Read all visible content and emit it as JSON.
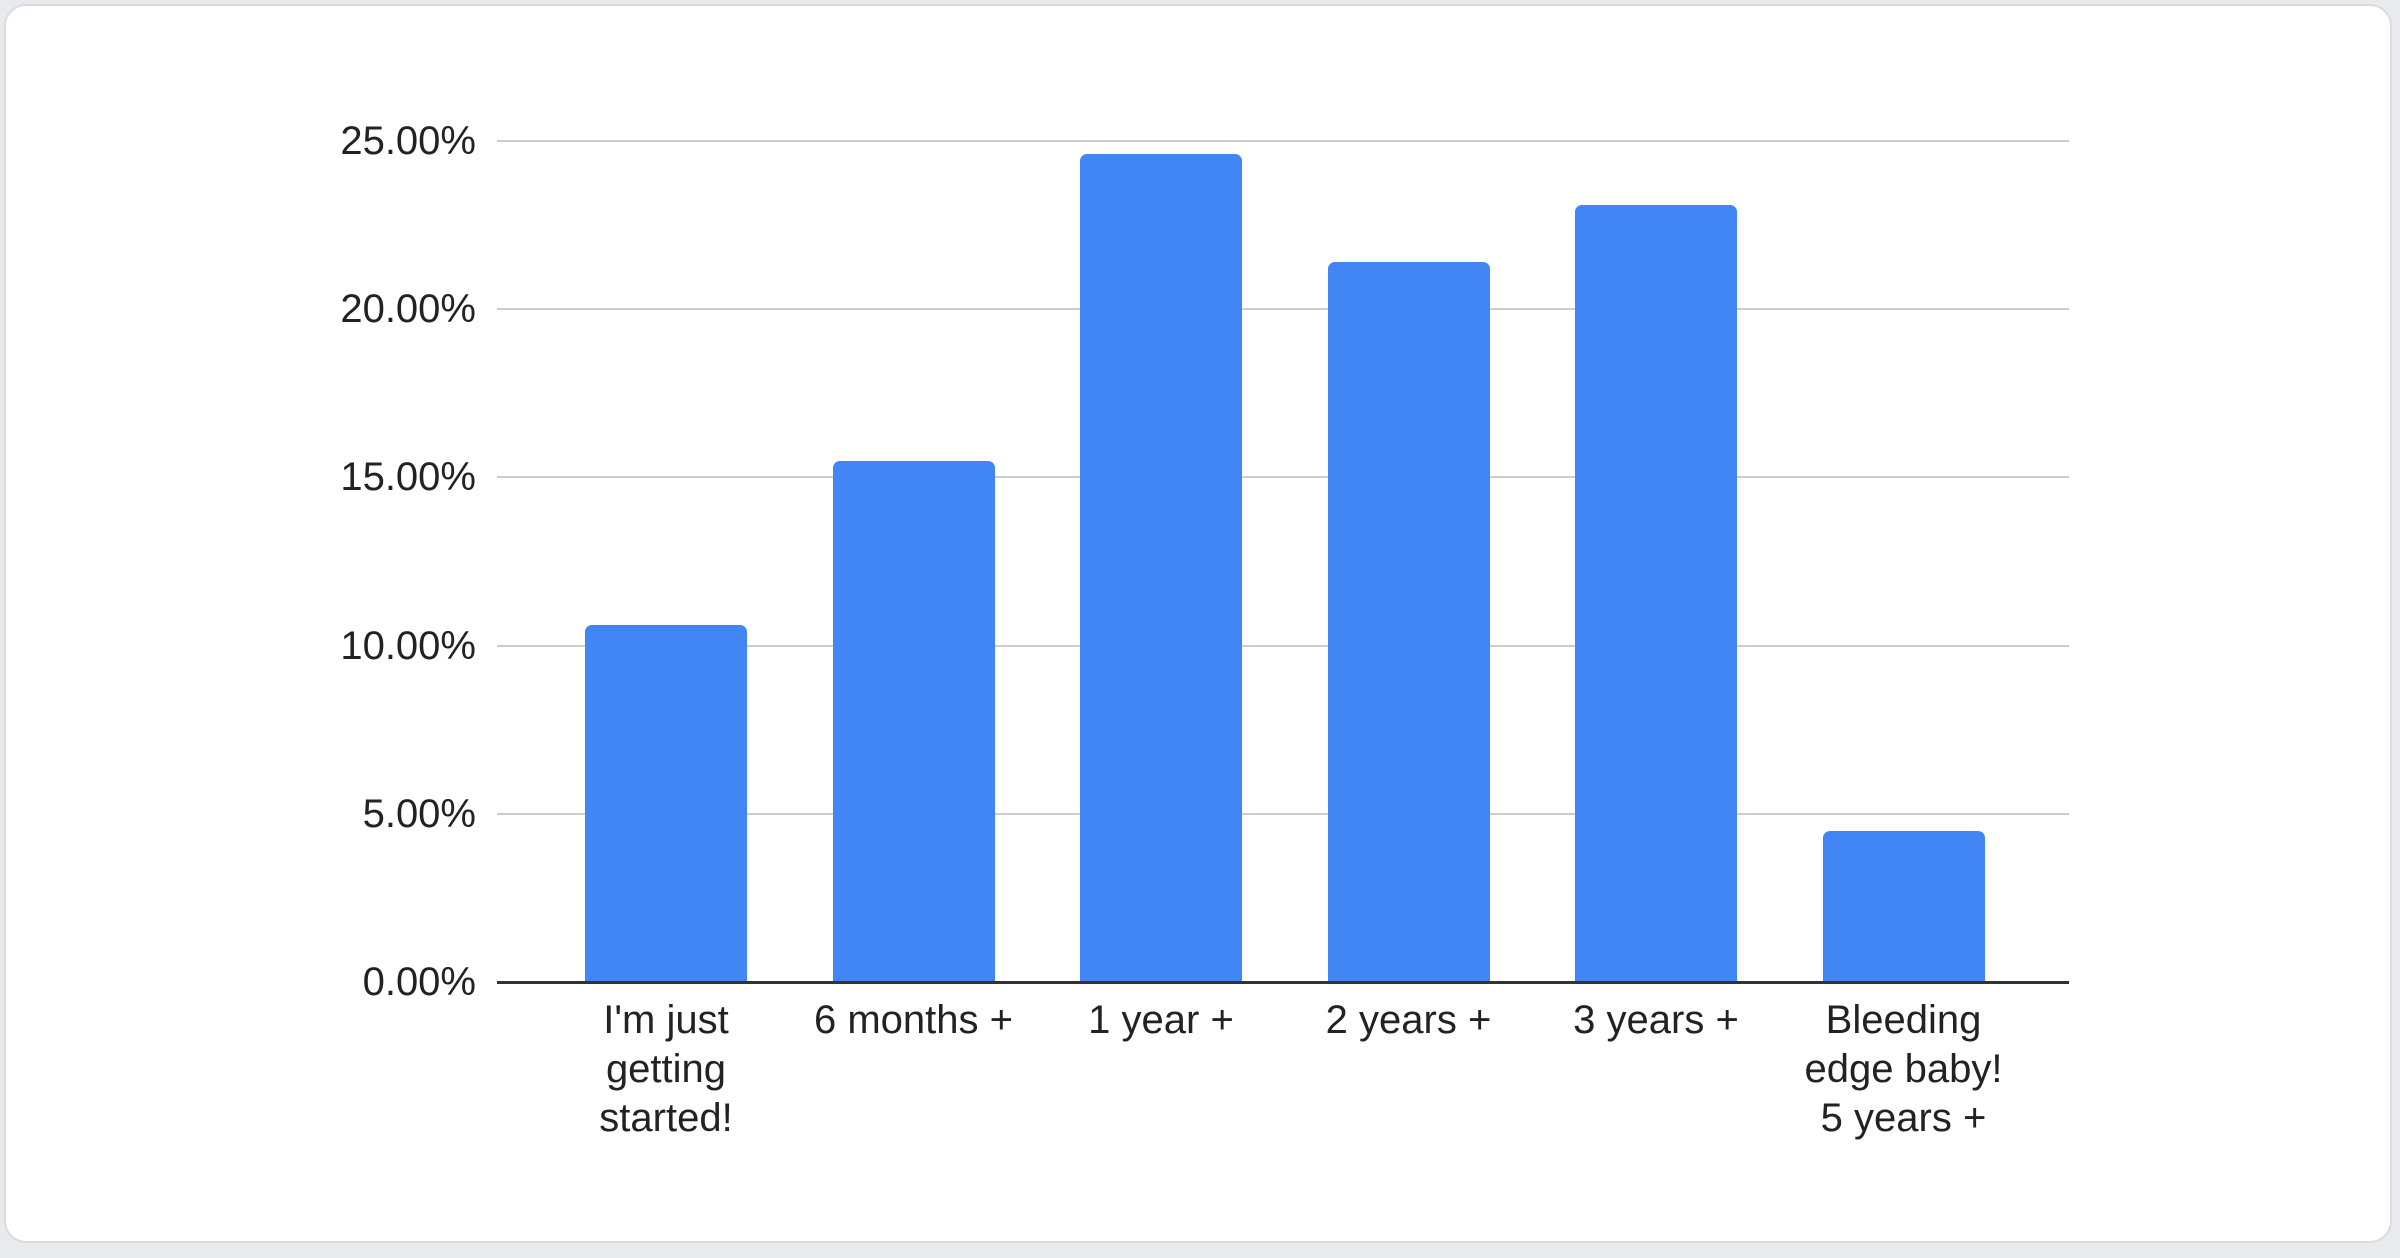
{
  "page": {
    "background_color": "#e8eaed",
    "card_background_color": "#ffffff",
    "card_border_color": "#d9dcdf"
  },
  "chart_data": {
    "type": "bar",
    "title": "",
    "xlabel": "",
    "ylabel": "",
    "categories": [
      "I'm just getting started!",
      "6 months +",
      "1 year +",
      "2 years +",
      "3 years +",
      "Bleeding edge baby! 5 years +"
    ],
    "category_lines": [
      [
        "I'm just",
        "getting",
        "started!"
      ],
      [
        "6 months +"
      ],
      [
        "1 year +"
      ],
      [
        "2 years +"
      ],
      [
        "3 years +"
      ],
      [
        "Bleeding",
        "edge baby!",
        "5 years +"
      ]
    ],
    "values": [
      10.6,
      15.5,
      24.6,
      21.4,
      23.1,
      4.5
    ],
    "unit": "%",
    "ylim": [
      0,
      25
    ],
    "y_ticks": [
      {
        "value": 0,
        "label": "0.00%"
      },
      {
        "value": 5,
        "label": "5.00%"
      },
      {
        "value": 10,
        "label": "10.00%"
      },
      {
        "value": 15,
        "label": "15.00%"
      },
      {
        "value": 20,
        "label": "20.00%"
      },
      {
        "value": 25,
        "label": "25.00%"
      }
    ],
    "grid": true,
    "legend": "none",
    "bar_color": "#4285f4",
    "gridline_color": "#cccccc",
    "axis_color": "#333333",
    "text_color": "#222222"
  }
}
